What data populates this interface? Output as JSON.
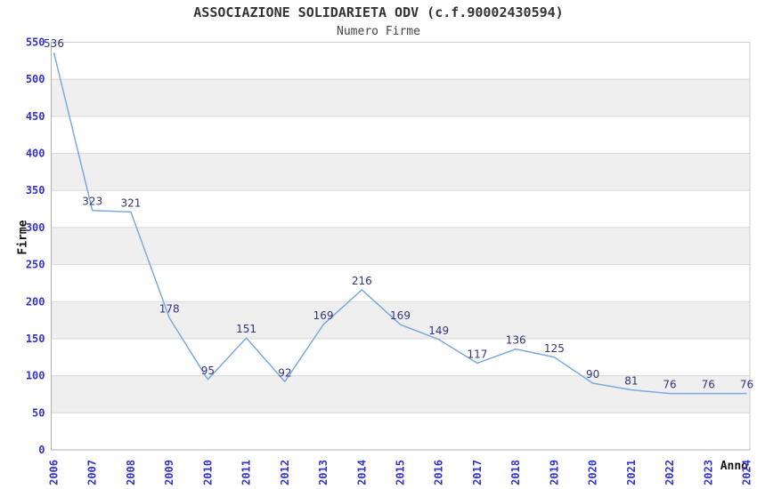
{
  "header": {
    "title": "ASSOCIAZIONE SOLIDARIETA ODV (c.f.90002430594)",
    "subtitle": "Numero Firme"
  },
  "chart_data": {
    "type": "line",
    "title": "ASSOCIAZIONE SOLIDARIETA ODV (c.f.90002430594)",
    "subtitle": "Numero Firme",
    "xlabel": "Anno",
    "ylabel": "Firme",
    "categories": [
      "2006",
      "2007",
      "2008",
      "2009",
      "2010",
      "2011",
      "2012",
      "2013",
      "2014",
      "2015",
      "2016",
      "2017",
      "2018",
      "2019",
      "2020",
      "2021",
      "2022",
      "2023",
      "2024"
    ],
    "series": [
      {
        "name": "Numero Firme",
        "values": [
          536,
          323,
          321,
          178,
          95,
          151,
          92,
          169,
          216,
          169,
          149,
          117,
          136,
          125,
          90,
          81,
          76,
          76,
          76
        ]
      }
    ],
    "ylim": [
      0,
      550
    ],
    "yticks": [
      0,
      50,
      100,
      150,
      200,
      250,
      300,
      350,
      400,
      450,
      500,
      550
    ],
    "grid": true,
    "alternating_bands": true,
    "legend_position": "none",
    "point_labels_visible": true,
    "colors": {
      "line": "#7aaadf",
      "point_label": "#333380",
      "tick_label": "#3333cc",
      "band": "#efefef",
      "grid_line": "#d9d9d9",
      "frame": "#cccccc",
      "axis_line": "#b0b0b0",
      "title": "#333333",
      "subtitle": "#444444",
      "axis_title": "#111111"
    }
  }
}
